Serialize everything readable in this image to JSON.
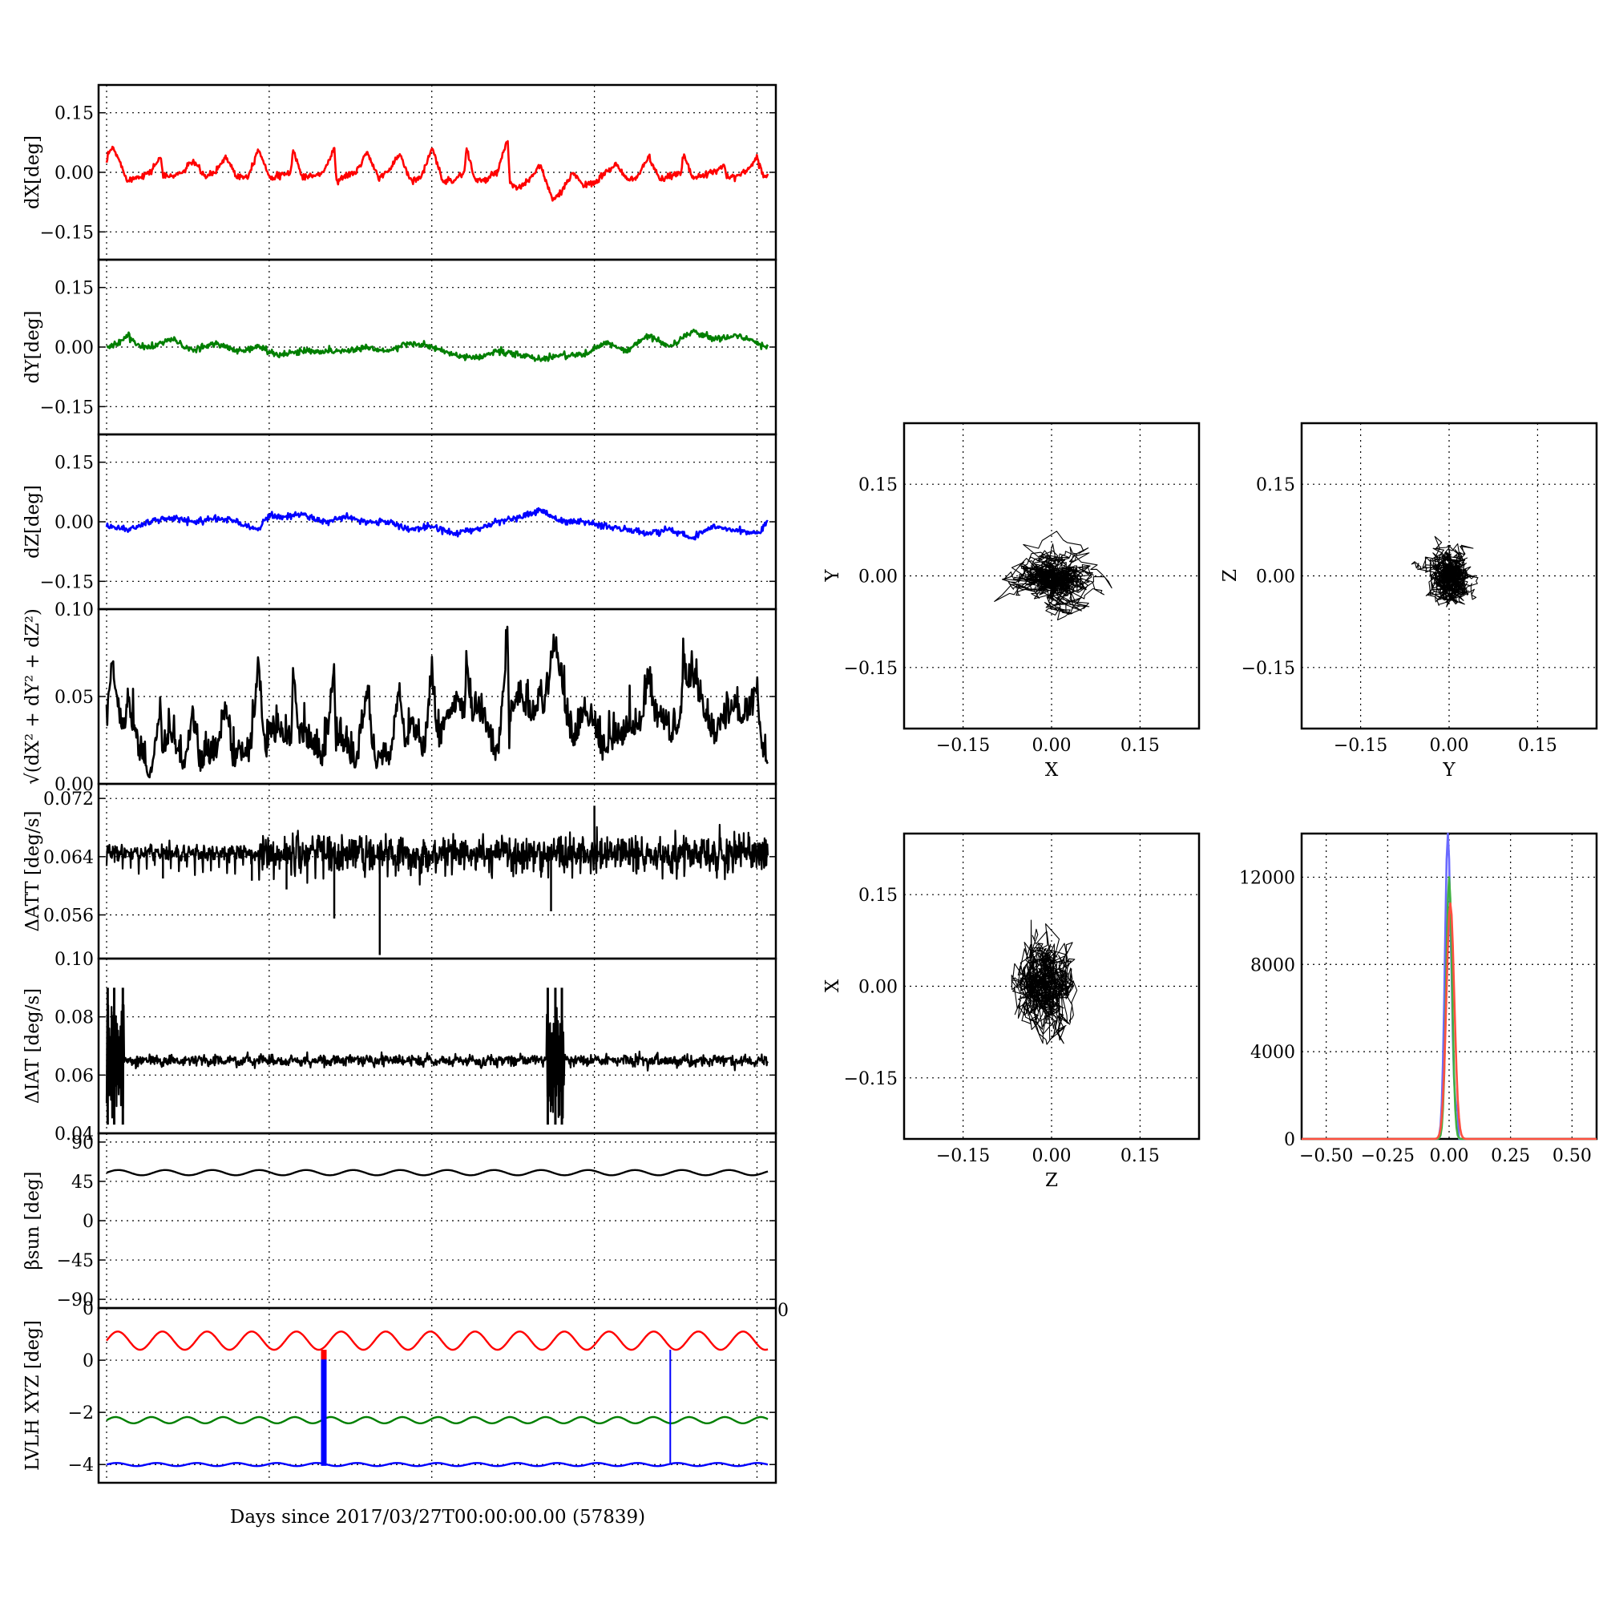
{
  "figure": {
    "xlabel": "Days since 2017/03/27T00:00:00.00 (57839)"
  },
  "chart_data": [
    {
      "id": "dx",
      "type": "line",
      "ylabel": "dX[deg]",
      "ylim": [
        -0.22,
        0.22
      ],
      "yticks": [
        -0.15,
        0.0,
        0.15
      ],
      "ytick_labels": [
        "−0.15",
        "0.00",
        "0.15"
      ],
      "grid": true,
      "series": [
        {
          "color": "#ff0000",
          "x": [
            0,
            0.1,
            0.3,
            0.5,
            0.8,
            1,
            1.5,
            2,
            2.5,
            2.6,
            3,
            3.5,
            4,
            4.5,
            4.6,
            5,
            5.5,
            6,
            6.5,
            6.6,
            7,
            7.5,
            8,
            8.5,
            8.6,
            9,
            9.5,
            10,
            10.5,
            10.6,
            11,
            11.5,
            12,
            12.5,
            12.6,
            13,
            13.5,
            14,
            14.5,
            14.6,
            15,
            15.5,
            16,
            16.5,
            16.6,
            17,
            17.5,
            18,
            18.5,
            18.6,
            19,
            19.5,
            20,
            20.5,
            20.6,
            21,
            21.5,
            22,
            22.5,
            23,
            23.5,
            24,
            24.5,
            24.6,
            25,
            25.5,
            26,
            26.5,
            26.6,
            27,
            27.5,
            28,
            28.5,
            28.6,
            29,
            29.5,
            30,
            30.3,
            30.5
          ],
          "y": [
            0.02,
            0.05,
            0.06,
            0.04,
            0.0,
            -0.02,
            -0.01,
            0.0,
            0.04,
            -0.01,
            -0.01,
            0.0,
            0.03,
            -0.01,
            -0.01,
            0.0,
            0.04,
            -0.01,
            -0.01,
            0.0,
            0.06,
            -0.01,
            -0.01,
            0.0,
            0.06,
            -0.01,
            -0.01,
            0.0,
            0.06,
            -0.02,
            -0.01,
            0.0,
            0.05,
            -0.01,
            -0.01,
            0.0,
            0.05,
            -0.02,
            -0.01,
            0.0,
            0.06,
            -0.02,
            -0.02,
            0.0,
            0.06,
            -0.02,
            -0.02,
            0.0,
            0.08,
            -0.03,
            -0.04,
            -0.02,
            0.02,
            -0.06,
            -0.07,
            -0.05,
            0.0,
            -0.03,
            -0.03,
            0.0,
            0.02,
            -0.02,
            -0.01,
            0.0,
            0.04,
            -0.02,
            -0.01,
            0.0,
            0.05,
            -0.01,
            -0.01,
            0.0,
            0.02,
            -0.01,
            -0.01,
            0.0,
            0.04,
            -0.01,
            -0.01
          ]
        }
      ]
    },
    {
      "id": "dy",
      "type": "line",
      "ylabel": "dY[deg]",
      "ylim": [
        -0.22,
        0.22
      ],
      "yticks": [
        -0.15,
        0.0,
        0.15
      ],
      "ytick_labels": [
        "−0.15",
        "0.00",
        "0.15"
      ],
      "grid": true,
      "series": [
        {
          "color": "#007f00",
          "x": [
            0,
            0.5,
            1,
            1.5,
            2,
            3,
            4,
            5,
            6,
            7,
            8,
            9,
            10,
            11,
            12,
            13,
            14,
            15,
            16,
            17,
            18,
            19,
            20,
            21,
            22,
            23,
            24,
            25,
            26,
            27,
            28,
            29,
            30,
            30.5
          ],
          "y": [
            0.0,
            0.01,
            0.03,
            0.0,
            0.0,
            0.02,
            -0.01,
            0.01,
            -0.01,
            0.0,
            -0.02,
            -0.01,
            -0.01,
            -0.01,
            0.0,
            -0.01,
            0.01,
            0.0,
            -0.02,
            -0.03,
            -0.01,
            -0.02,
            -0.03,
            -0.02,
            -0.02,
            0.01,
            -0.01,
            0.03,
            0.0,
            0.04,
            0.02,
            0.03,
            0.01,
            0.0
          ]
        }
      ]
    },
    {
      "id": "dz",
      "type": "line",
      "ylabel": "dZ[deg]",
      "ylim": [
        -0.22,
        0.22
      ],
      "yticks": [
        -0.15,
        0.0,
        0.15
      ],
      "ytick_labels": [
        "−0.15",
        "0.00",
        "0.15"
      ],
      "grid": true,
      "series": [
        {
          "color": "#0000ff",
          "x": [
            0,
            1,
            2,
            3,
            4,
            5,
            6,
            7,
            7.5,
            8,
            9,
            10,
            11,
            12,
            13,
            14,
            15,
            16,
            17,
            18,
            19,
            20,
            21,
            22,
            23,
            24,
            25,
            26,
            27,
            28,
            29,
            30,
            30.5
          ],
          "y": [
            -0.01,
            -0.02,
            0.0,
            0.01,
            0.0,
            0.01,
            0.0,
            -0.02,
            0.02,
            0.01,
            0.02,
            0.0,
            0.01,
            0.0,
            0.0,
            -0.02,
            -0.01,
            -0.03,
            -0.02,
            0.0,
            0.01,
            0.03,
            0.0,
            0.0,
            -0.01,
            -0.02,
            -0.03,
            -0.02,
            -0.04,
            -0.01,
            -0.02,
            -0.03,
            0.0
          ]
        }
      ]
    },
    {
      "id": "r",
      "type": "line",
      "ylabel": "√(dX² + dY² + dZ²)",
      "ylim": [
        0.0,
        0.1
      ]
    },
    {
      "id": "datt",
      "type": "line",
      "ylabel": "ΔATT [deg/s]",
      "ylim": [
        0.05,
        0.074
      ]
    },
    {
      "id": "diat",
      "type": "line",
      "ylabel": "ΔIAT [deg/s]",
      "ylim": [
        0.04,
        0.1
      ]
    },
    {
      "id": "beta",
      "type": "line",
      "ylabel": "βsun [deg]",
      "ylim": [
        -100,
        100
      ]
    },
    {
      "id": "lvlh",
      "type": "line",
      "ylabel": "LVLH XYZ [deg]",
      "ylim": [
        -4.7,
        2.0
      ]
    },
    {
      "id": "sxy",
      "type": "scatter",
      "xlabel": "X",
      "ylabel": "Y",
      "xlim": [
        -0.25,
        0.25
      ],
      "ylim": [
        -0.25,
        0.25
      ],
      "center": [
        0.0,
        -0.01
      ],
      "spread": [
        0.04,
        0.025
      ]
    },
    {
      "id": "syz",
      "type": "scatter",
      "xlabel": "Y",
      "ylabel": "Z",
      "xlim": [
        -0.25,
        0.25
      ],
      "ylim": [
        -0.25,
        0.25
      ],
      "center": [
        -0.005,
        0.0
      ],
      "spread": [
        0.025,
        0.025
      ]
    },
    {
      "id": "szx",
      "type": "scatter",
      "xlabel": "Z",
      "ylabel": "X",
      "xlim": [
        -0.25,
        0.25
      ],
      "ylim": [
        -0.25,
        0.25
      ],
      "center": [
        -0.005,
        0.0
      ],
      "spread": [
        0.025,
        0.045
      ]
    },
    {
      "id": "hist",
      "type": "line",
      "xlim": [
        -0.6,
        0.6
      ],
      "ylim": [
        0,
        14000
      ]
    }
  ],
  "colors": {
    "x_series": "#ff0000",
    "y_series": "#007f00",
    "z_series": "#0000ff",
    "norm_series": "#000000",
    "hist_x": "#ff5040",
    "hist_y": "#40b040",
    "hist_z": "#6a6aff"
  },
  "ticks": {
    "r_y": [
      {
        "v": 0.0,
        "t": "0.00"
      },
      {
        "v": 0.05,
        "t": "0.05"
      },
      {
        "v": 0.1,
        "t": "0.10"
      }
    ],
    "datt_y": [
      {
        "v": 0.056,
        "t": "0.056"
      },
      {
        "v": 0.064,
        "t": "0.064"
      },
      {
        "v": 0.072,
        "t": "0.072"
      }
    ],
    "datt_bottom_label": "0.10",
    "diat_y": [
      {
        "v": 0.04,
        "t": "0.04"
      },
      {
        "v": 0.06,
        "t": "0.06"
      },
      {
        "v": 0.08,
        "t": "0.08"
      }
    ],
    "beta_y": [
      {
        "v": -90,
        "t": "−90"
      },
      {
        "v": -45,
        "t": "−45"
      },
      {
        "v": 0,
        "t": "0"
      },
      {
        "v": 45,
        "t": "45"
      },
      {
        "v": 90,
        "t": "90"
      }
    ],
    "beta_bottom_label": "0",
    "lvlh_y": [
      {
        "v": -4,
        "t": "−4"
      },
      {
        "v": -2,
        "t": "−2"
      },
      {
        "v": 0,
        "t": "0"
      }
    ],
    "lvlh_right_label": "0",
    "scatter": [
      {
        "v": -0.15,
        "t": "−0.15"
      },
      {
        "v": 0.0,
        "t": "0.00"
      },
      {
        "v": 0.15,
        "t": "0.15"
      }
    ],
    "hist_x": [
      {
        "v": -0.5,
        "t": "−0.50"
      },
      {
        "v": -0.25,
        "t": "−0.25"
      },
      {
        "v": 0.0,
        "t": "0.00"
      },
      {
        "v": 0.25,
        "t": "0.25"
      },
      {
        "v": 0.5,
        "t": "0.50"
      }
    ],
    "hist_y": [
      {
        "v": 0,
        "t": "0"
      },
      {
        "v": 4000,
        "t": "4000"
      },
      {
        "v": 8000,
        "t": "8000"
      },
      {
        "v": 12000,
        "t": "12000"
      }
    ]
  }
}
